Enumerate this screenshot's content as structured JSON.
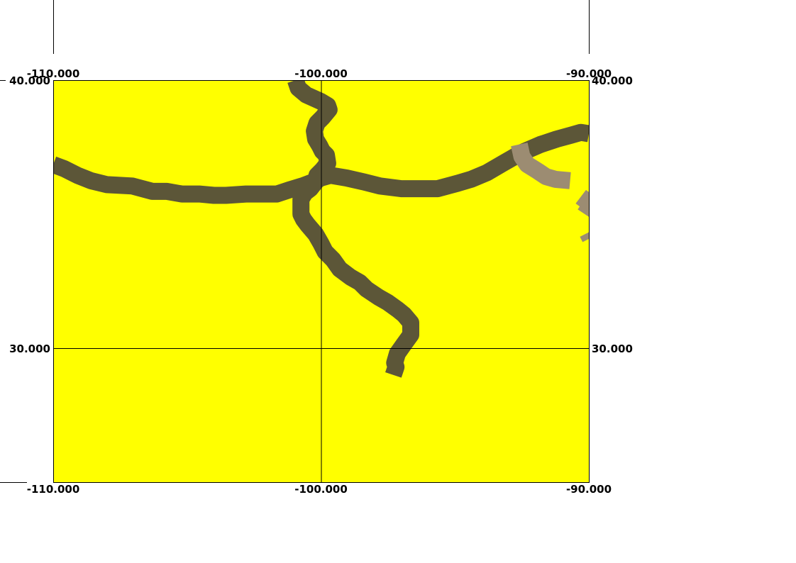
{
  "map": {
    "background_color": "#ffff00",
    "frame_color": "#000000",
    "gridline_color": "#000000",
    "extent": {
      "lon_min": -110,
      "lon_max": -90,
      "lat_min": 25,
      "lat_max": 40
    },
    "longitude_labels": [
      {
        "value": -110,
        "text": "-110.000"
      },
      {
        "value": -100,
        "text": "-100.000"
      },
      {
        "value": -90,
        "text": "-90.000"
      }
    ],
    "latitude_labels": [
      {
        "value": 40,
        "text": "40.000"
      },
      {
        "value": 30,
        "text": "30.000"
      }
    ],
    "gridlines": {
      "longitudes": [
        -100
      ],
      "latitudes": [
        30
      ]
    },
    "features": [
      {
        "name": "north-south-route",
        "color": "#5c5638",
        "coords": [
          [
            -100.95,
            40
          ],
          [
            -100.85,
            39.7
          ],
          [
            -100.55,
            39.45
          ],
          [
            -100.0,
            39.2
          ],
          [
            -99.75,
            39.05
          ],
          [
            -99.7,
            38.9
          ],
          [
            -99.95,
            38.6
          ],
          [
            -100.15,
            38.4
          ],
          [
            -100.25,
            38.1
          ],
          [
            -100.2,
            37.8
          ],
          [
            -100.05,
            37.55
          ],
          [
            -99.95,
            37.35
          ],
          [
            -99.8,
            37.2
          ],
          [
            -99.75,
            36.9
          ],
          [
            -99.95,
            36.65
          ],
          [
            -100.15,
            36.45
          ],
          [
            -100.2,
            36.2
          ],
          [
            -100.4,
            35.95
          ],
          [
            -100.6,
            35.8
          ],
          [
            -100.75,
            35.55
          ],
          [
            -100.75,
            35.0
          ],
          [
            -100.65,
            34.8
          ],
          [
            -100.5,
            34.6
          ],
          [
            -100.2,
            34.25
          ],
          [
            -100.0,
            33.9
          ],
          [
            -99.85,
            33.6
          ],
          [
            -99.55,
            33.3
          ],
          [
            -99.3,
            32.95
          ],
          [
            -98.9,
            32.65
          ],
          [
            -98.55,
            32.45
          ],
          [
            -98.3,
            32.2
          ],
          [
            -97.85,
            31.9
          ],
          [
            -97.5,
            31.7
          ],
          [
            -97.15,
            31.45
          ],
          [
            -96.9,
            31.25
          ],
          [
            -96.65,
            30.95
          ],
          [
            -96.65,
            30.5
          ],
          [
            -96.9,
            30.15
          ],
          [
            -97.15,
            29.8
          ],
          [
            -97.25,
            29.45
          ],
          [
            -97.2,
            29.3
          ],
          [
            -97.3,
            29.0
          ]
        ]
      },
      {
        "name": "east-west-route",
        "color": "#5c5638",
        "coords": [
          [
            -110,
            36.85
          ],
          [
            -109.6,
            36.7
          ],
          [
            -109.1,
            36.45
          ],
          [
            -108.6,
            36.25
          ],
          [
            -108.0,
            36.1
          ],
          [
            -107.05,
            36.05
          ],
          [
            -106.3,
            35.85
          ],
          [
            -105.75,
            35.85
          ],
          [
            -105.2,
            35.75
          ],
          [
            -104.55,
            35.75
          ],
          [
            -104.0,
            35.7
          ],
          [
            -103.55,
            35.7
          ],
          [
            -102.8,
            35.75
          ],
          [
            -101.65,
            35.75
          ],
          [
            -101.2,
            35.9
          ],
          [
            -100.7,
            36.05
          ],
          [
            -100.3,
            36.2
          ],
          [
            -100.0,
            36.35
          ],
          [
            -99.65,
            36.45
          ],
          [
            -99.05,
            36.35
          ],
          [
            -98.4,
            36.2
          ],
          [
            -97.8,
            36.05
          ],
          [
            -97.0,
            35.95
          ],
          [
            -95.65,
            35.95
          ],
          [
            -94.9,
            36.15
          ],
          [
            -94.4,
            36.3
          ],
          [
            -93.8,
            36.55
          ],
          [
            -93.2,
            36.9
          ],
          [
            -92.5,
            37.3
          ],
          [
            -91.8,
            37.6
          ],
          [
            -91.2,
            37.8
          ],
          [
            -90.65,
            37.95
          ],
          [
            -90.3,
            38.05
          ],
          [
            -90,
            38
          ]
        ]
      },
      {
        "name": "secondary-route-east",
        "color": "#9c8c72",
        "coords": [
          [
            -92.6,
            37.6
          ],
          [
            -92.5,
            37.15
          ],
          [
            -92.3,
            36.85
          ],
          [
            -91.9,
            36.6
          ],
          [
            -91.6,
            36.4
          ],
          [
            -91.25,
            36.3
          ],
          [
            -90.7,
            36.25
          ]
        ]
      },
      {
        "name": "secondary-route-east-2",
        "color": "#9c8c72",
        "coords": [
          [
            -90.3,
            35.65
          ],
          [
            -90.1,
            35.5
          ],
          [
            -90.0,
            35.35
          ],
          [
            -90.05,
            35.15
          ],
          [
            -90.15,
            35.0
          ]
        ]
      },
      {
        "name": "secondary-route-east-3",
        "color": "#9c8c72",
        "coords": [
          [
            -90.05,
            34.3
          ],
          [
            -89.95,
            34.1
          ]
        ]
      }
    ]
  }
}
